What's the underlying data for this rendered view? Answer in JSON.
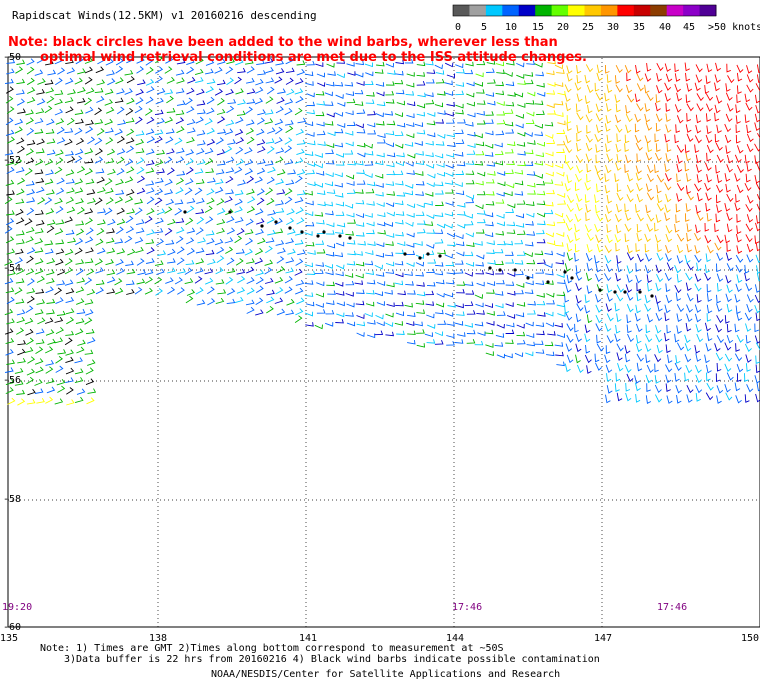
{
  "header": {
    "title": "Rapidscat Winds(12.5KM) v1 20160216 descending",
    "legend_labels": [
      "0",
      "5",
      "10",
      "15",
      "20",
      "25",
      "30",
      "35",
      "40",
      "45",
      ">50 knots"
    ],
    "legend_colors": [
      "#595959",
      "#a0a0a0",
      "#00c8ff",
      "#0064ff",
      "#0000c8",
      "#00b400",
      "#64ff00",
      "#ffff00",
      "#ffc800",
      "#ff9600",
      "#ff0000",
      "#c80000",
      "#8c3c00",
      "#c800c8",
      "#8c00c8",
      "#500096"
    ]
  },
  "notice": {
    "line1": "Note: black circles have been added to the wind barbs, wherever less than",
    "line2": "optimal wind retrieval conditions are met due to the ISS attitude changes."
  },
  "map": {
    "lat_labels": [
      "-50",
      "-52",
      "-54",
      "-56",
      "-58",
      "-60"
    ],
    "lon_labels": [
      "135",
      "138",
      "141",
      "144",
      "147",
      "150"
    ],
    "time_labels": [
      "19:20",
      "17:46",
      "17:46"
    ]
  },
  "footer": {
    "line1": "Note: 1) Times are GMT 2)Times along bottom correspond to measurement at ~50S",
    "line2": "3)Data buffer is 22 hrs from 20160216 4) Black wind barbs indicate possible contamination",
    "credit": "NOAA/NESDIS/Center for Satellite Applications and Research"
  }
}
